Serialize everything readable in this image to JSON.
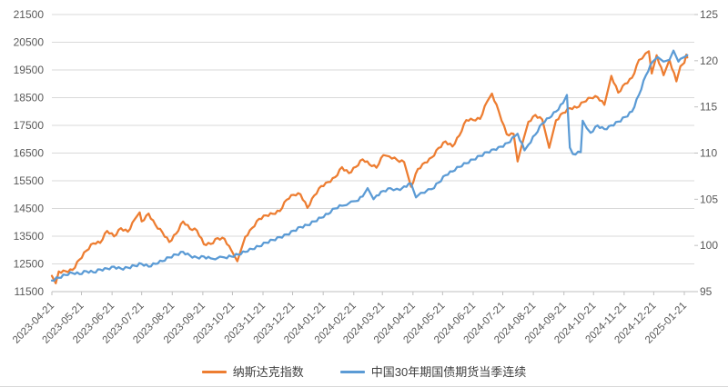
{
  "chart_data": {
    "type": "line",
    "title": "",
    "grid": "horizontal",
    "legend_position": "bottom",
    "x_axis": {
      "start_date": "2023-04-21",
      "end_date": "2025-01-21",
      "tick_labels": [
        "2023-04-21",
        "2023-05-21",
        "2023-06-21",
        "2023-07-21",
        "2023-08-21",
        "2023-09-21",
        "2023-10-21",
        "2023-11-21",
        "2023-12-21",
        "2024-01-21",
        "2024-02-21",
        "2024-03-21",
        "2024-04-21",
        "2024-05-21",
        "2024-06-21",
        "2024-07-21",
        "2024-08-21",
        "2024-09-21",
        "2024-10-21",
        "2024-11-21",
        "2024-12-21",
        "2025-01-21"
      ]
    },
    "left_axis": {
      "min": 11500,
      "max": 21500,
      "step": 1000,
      "ticks": [
        21500,
        20500,
        19500,
        18500,
        17500,
        16500,
        15500,
        14500,
        13500,
        12500,
        11500
      ]
    },
    "right_axis": {
      "min": 95,
      "max": 125,
      "step": 5,
      "ticks": [
        125,
        120,
        115,
        110,
        105,
        100,
        95
      ]
    },
    "colors": {
      "grid": "#d9d9d9",
      "axis_line": "#bfbfbf",
      "tick_text": "#595959"
    },
    "series": [
      {
        "name": "纳斯达克指数",
        "color": "#ED7D31",
        "axis": "left",
        "data": [
          [
            "2023-04-21",
            12072
          ],
          [
            "2023-04-25",
            11799
          ],
          [
            "2023-04-28",
            12227
          ],
          [
            "2023-05-05",
            12235
          ],
          [
            "2023-05-12",
            12285
          ],
          [
            "2023-05-19",
            12658
          ],
          [
            "2023-05-26",
            12976
          ],
          [
            "2023-06-02",
            13241
          ],
          [
            "2023-06-09",
            13259
          ],
          [
            "2023-06-16",
            13690
          ],
          [
            "2023-06-23",
            13493
          ],
          [
            "2023-06-30",
            13788
          ],
          [
            "2023-07-07",
            13661
          ],
          [
            "2023-07-14",
            14114
          ],
          [
            "2023-07-19",
            14358
          ],
          [
            "2023-07-21",
            14033
          ],
          [
            "2023-07-28",
            14317
          ],
          [
            "2023-08-04",
            13909
          ],
          [
            "2023-08-11",
            13645
          ],
          [
            "2023-08-18",
            13291
          ],
          [
            "2023-08-25",
            13591
          ],
          [
            "2023-09-01",
            14032
          ],
          [
            "2023-09-08",
            13762
          ],
          [
            "2023-09-15",
            13708
          ],
          [
            "2023-09-22",
            13212
          ],
          [
            "2023-09-29",
            13219
          ],
          [
            "2023-10-06",
            13431
          ],
          [
            "2023-10-13",
            13407
          ],
          [
            "2023-10-20",
            12984
          ],
          [
            "2023-10-26",
            12595
          ],
          [
            "2023-11-03",
            13478
          ],
          [
            "2023-11-10",
            13798
          ],
          [
            "2023-11-17",
            14125
          ],
          [
            "2023-11-24",
            14251
          ],
          [
            "2023-12-01",
            14305
          ],
          [
            "2023-12-08",
            14404
          ],
          [
            "2023-12-15",
            14814
          ],
          [
            "2023-12-22",
            14993
          ],
          [
            "2023-12-29",
            15011
          ],
          [
            "2024-01-05",
            14524
          ],
          [
            "2024-01-12",
            14973
          ],
          [
            "2024-01-19",
            15311
          ],
          [
            "2024-01-26",
            15455
          ],
          [
            "2024-02-02",
            15629
          ],
          [
            "2024-02-09",
            15991
          ],
          [
            "2024-02-16",
            15776
          ],
          [
            "2024-02-23",
            15997
          ],
          [
            "2024-03-01",
            16275
          ],
          [
            "2024-03-08",
            16085
          ],
          [
            "2024-03-15",
            15973
          ],
          [
            "2024-03-22",
            16428
          ],
          [
            "2024-03-28",
            16379
          ],
          [
            "2024-04-05",
            16249
          ],
          [
            "2024-04-12",
            16175
          ],
          [
            "2024-04-19",
            15282
          ],
          [
            "2024-04-26",
            15928
          ],
          [
            "2024-05-03",
            16156
          ],
          [
            "2024-05-10",
            16341
          ],
          [
            "2024-05-17",
            16686
          ],
          [
            "2024-05-24",
            16921
          ],
          [
            "2024-05-31",
            16735
          ],
          [
            "2024-06-07",
            17133
          ],
          [
            "2024-06-14",
            17689
          ],
          [
            "2024-06-21",
            17689
          ],
          [
            "2024-06-28",
            17733
          ],
          [
            "2024-07-05",
            18353
          ],
          [
            "2024-07-10",
            18647
          ],
          [
            "2024-07-17",
            17997
          ],
          [
            "2024-07-25",
            17182
          ],
          [
            "2024-08-01",
            17194
          ],
          [
            "2024-08-05",
            16200
          ],
          [
            "2024-08-09",
            16745
          ],
          [
            "2024-08-16",
            17632
          ],
          [
            "2024-08-23",
            17877
          ],
          [
            "2024-08-30",
            17714
          ],
          [
            "2024-09-06",
            16691
          ],
          [
            "2024-09-13",
            17684
          ],
          [
            "2024-09-20",
            17948
          ],
          [
            "2024-09-27",
            18120
          ],
          [
            "2024-10-04",
            18138
          ],
          [
            "2024-10-11",
            18343
          ],
          [
            "2024-10-18",
            18490
          ],
          [
            "2024-10-25",
            18519
          ],
          [
            "2024-11-01",
            18240
          ],
          [
            "2024-11-08",
            19287
          ],
          [
            "2024-11-15",
            18680
          ],
          [
            "2024-11-22",
            19004
          ],
          [
            "2024-11-29",
            19218
          ],
          [
            "2024-12-06",
            19860
          ],
          [
            "2024-12-16",
            20174
          ],
          [
            "2024-12-19",
            19373
          ],
          [
            "2024-12-24",
            20031
          ],
          [
            "2024-12-31",
            19311
          ],
          [
            "2025-01-06",
            19864
          ],
          [
            "2025-01-13",
            19088
          ],
          [
            "2025-01-17",
            19630
          ],
          [
            "2025-01-21",
            19756
          ],
          [
            "2025-01-23",
            20053
          ],
          [
            "2025-01-24",
            19954
          ]
        ]
      },
      {
        "name": "中国30年期国债期货当季连续",
        "color": "#5B9BD5",
        "axis": "right",
        "data": [
          [
            "2023-04-21",
            96.2
          ],
          [
            "2023-04-28",
            96.5
          ],
          [
            "2023-05-05",
            96.8
          ],
          [
            "2023-05-12",
            97.0
          ],
          [
            "2023-05-19",
            96.9
          ],
          [
            "2023-05-26",
            97.2
          ],
          [
            "2023-06-02",
            97.1
          ],
          [
            "2023-06-09",
            97.4
          ],
          [
            "2023-06-16",
            97.5
          ],
          [
            "2023-06-23",
            97.7
          ],
          [
            "2023-06-30",
            97.5
          ],
          [
            "2023-07-07",
            97.6
          ],
          [
            "2023-07-14",
            97.8
          ],
          [
            "2023-07-21",
            98.0
          ],
          [
            "2023-07-28",
            97.7
          ],
          [
            "2023-08-04",
            98.0
          ],
          [
            "2023-08-11",
            98.3
          ],
          [
            "2023-08-18",
            98.7
          ],
          [
            "2023-08-25",
            99.0
          ],
          [
            "2023-09-01",
            99.3
          ],
          [
            "2023-09-08",
            98.9
          ],
          [
            "2023-09-15",
            98.7
          ],
          [
            "2023-09-22",
            98.8
          ],
          [
            "2023-09-29",
            98.6
          ],
          [
            "2023-10-13",
            98.7
          ],
          [
            "2023-10-20",
            98.8
          ],
          [
            "2023-10-27",
            99.0
          ],
          [
            "2023-11-03",
            99.3
          ],
          [
            "2023-11-10",
            99.6
          ],
          [
            "2023-11-17",
            99.9
          ],
          [
            "2023-11-24",
            100.3
          ],
          [
            "2023-12-01",
            100.6
          ],
          [
            "2023-12-08",
            100.9
          ],
          [
            "2023-12-15",
            101.2
          ],
          [
            "2023-12-22",
            101.6
          ],
          [
            "2023-12-29",
            102.0
          ],
          [
            "2024-01-05",
            102.2
          ],
          [
            "2024-01-12",
            102.6
          ],
          [
            "2024-01-19",
            103.0
          ],
          [
            "2024-01-26",
            103.4
          ],
          [
            "2024-02-02",
            104.0
          ],
          [
            "2024-02-09",
            104.3
          ],
          [
            "2024-02-23",
            104.8
          ],
          [
            "2024-03-01",
            105.3
          ],
          [
            "2024-03-06",
            106.2
          ],
          [
            "2024-03-12",
            105.0
          ],
          [
            "2024-03-15",
            105.4
          ],
          [
            "2024-03-22",
            105.9
          ],
          [
            "2024-03-29",
            106.2
          ],
          [
            "2024-04-08",
            106.0
          ],
          [
            "2024-04-12",
            106.4
          ],
          [
            "2024-04-19",
            106.7
          ],
          [
            "2024-04-24",
            105.2
          ],
          [
            "2024-04-29",
            105.7
          ],
          [
            "2024-05-10",
            106.1
          ],
          [
            "2024-05-17",
            106.8
          ],
          [
            "2024-05-24",
            107.6
          ],
          [
            "2024-05-31",
            108.0
          ],
          [
            "2024-06-07",
            108.5
          ],
          [
            "2024-06-14",
            108.9
          ],
          [
            "2024-06-21",
            109.3
          ],
          [
            "2024-06-28",
            109.7
          ],
          [
            "2024-07-05",
            110.1
          ],
          [
            "2024-07-12",
            110.4
          ],
          [
            "2024-07-19",
            110.7
          ],
          [
            "2024-07-26",
            111.1
          ],
          [
            "2024-08-02",
            111.8
          ],
          [
            "2024-08-05",
            112.1
          ],
          [
            "2024-08-12",
            110.3
          ],
          [
            "2024-08-16",
            110.9
          ],
          [
            "2024-08-23",
            112.0
          ],
          [
            "2024-08-30",
            113.2
          ],
          [
            "2024-09-06",
            113.8
          ],
          [
            "2024-09-13",
            114.5
          ],
          [
            "2024-09-20",
            115.4
          ],
          [
            "2024-09-24",
            116.3
          ],
          [
            "2024-09-27",
            110.6
          ],
          [
            "2024-09-30",
            109.9
          ],
          [
            "2024-10-08",
            110.1
          ],
          [
            "2024-10-10",
            113.5
          ],
          [
            "2024-10-14",
            112.7
          ],
          [
            "2024-10-18",
            112.2
          ],
          [
            "2024-10-25",
            113.0
          ],
          [
            "2024-11-01",
            112.6
          ],
          [
            "2024-11-08",
            113.0
          ],
          [
            "2024-11-15",
            113.4
          ],
          [
            "2024-11-22",
            113.9
          ],
          [
            "2024-11-29",
            114.5
          ],
          [
            "2024-12-06",
            116.3
          ],
          [
            "2024-12-13",
            118.4
          ],
          [
            "2024-12-20",
            119.9
          ],
          [
            "2024-12-25",
            120.4
          ],
          [
            "2024-12-31",
            119.9
          ],
          [
            "2025-01-06",
            120.1
          ],
          [
            "2025-01-10",
            121.1
          ],
          [
            "2025-01-15",
            119.9
          ],
          [
            "2025-01-17",
            120.2
          ],
          [
            "2025-01-21",
            120.4
          ],
          [
            "2025-01-24",
            120.6
          ]
        ]
      }
    ]
  }
}
